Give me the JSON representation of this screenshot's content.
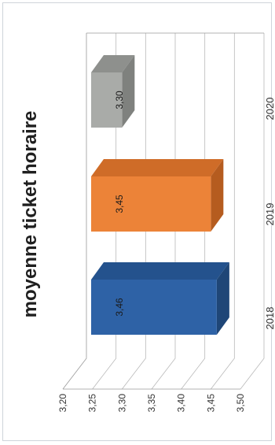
{
  "chart_data": {
    "type": "bar",
    "title": "moyenne ticket horaire",
    "categories": [
      "2018",
      "2019",
      "2020"
    ],
    "values": [
      3.46,
      3.45,
      3.3
    ],
    "data_labels": [
      "3,46",
      "3,45",
      "3,30"
    ],
    "ylim": [
      3.2,
      3.5
    ],
    "yticks": [
      "3,20",
      "3,25",
      "3,30",
      "3,35",
      "3,40",
      "3,45",
      "3,50"
    ],
    "grid": true,
    "legend": "none",
    "colors": [
      "#2e62a6",
      "#ec8338",
      "#a9aba8"
    ],
    "top_colors": [
      "#1f4677",
      "#b55c1f",
      "#7f817e"
    ],
    "side_colors": [
      "#24528d",
      "#cf6c28",
      "#8e908d"
    ]
  }
}
